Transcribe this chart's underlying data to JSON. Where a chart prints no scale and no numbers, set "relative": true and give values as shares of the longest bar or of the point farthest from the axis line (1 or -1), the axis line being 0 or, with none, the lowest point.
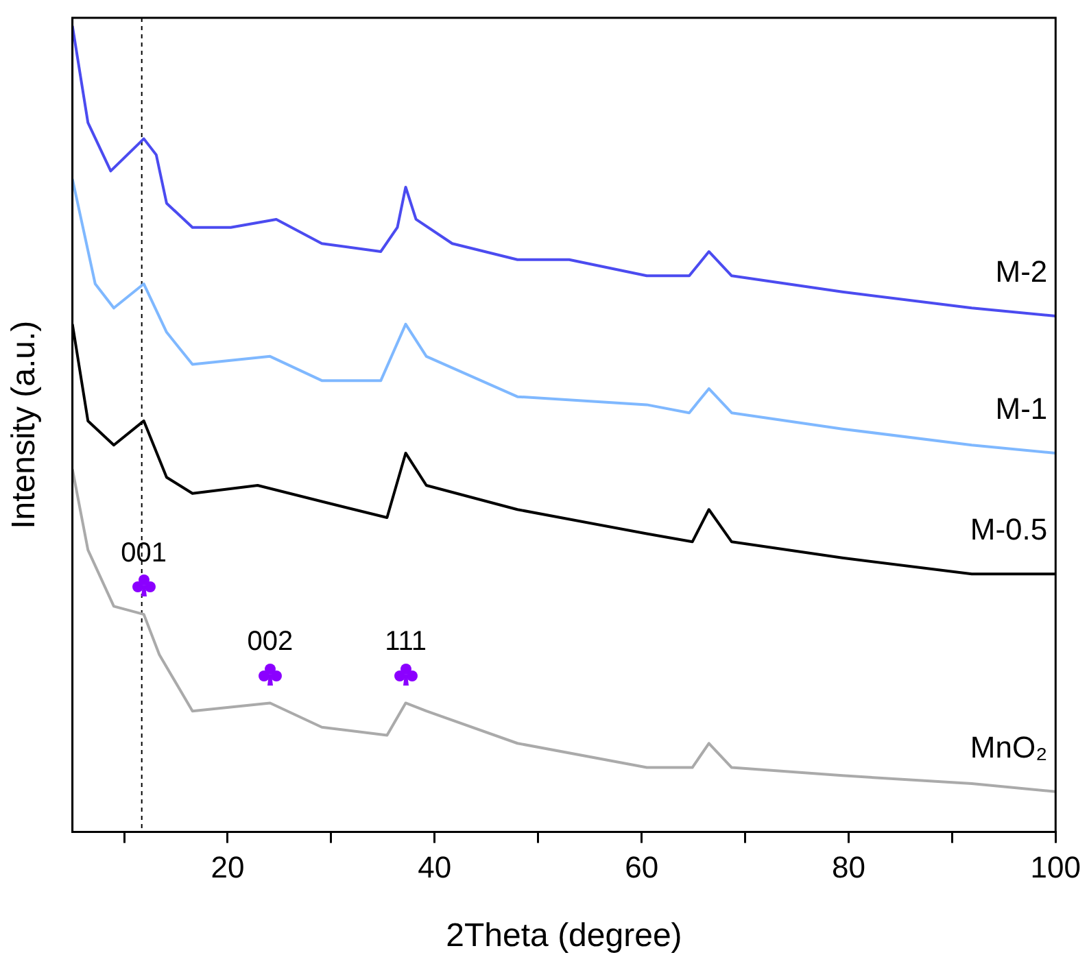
{
  "chart_data": {
    "type": "line",
    "relative": true,
    "xlabel": "2Theta (degree)",
    "ylabel": "Intensity (a.u.)",
    "xlim": [
      5,
      100
    ],
    "xticks": [
      {
        "value": 10,
        "label": null
      },
      20,
      {
        "value": 30,
        "label": null
      },
      40,
      {
        "value": 50,
        "label": null
      },
      60,
      {
        "value": 70,
        "label": null
      },
      80,
      {
        "value": 90,
        "label": null
      },
      100
    ],
    "tick_labels": "x",
    "marker": "none",
    "line_style": "solid",
    "series": [
      {
        "name": "M-2",
        "color": "#4b4bf0",
        "x": [
          5,
          6.5,
          8.7,
          10.3,
          11.9,
          13.1,
          14.1,
          16.6,
          20.3,
          24.7,
          29.1,
          34.8,
          36.4,
          37.2,
          38.2,
          41.7,
          48,
          53,
          60.5,
          64.6,
          66.5,
          68.7,
          79.4,
          91.9,
          100
        ],
        "values": [
          1.0,
          0.88,
          0.82,
          0.84,
          0.86,
          0.84,
          0.78,
          0.75,
          0.75,
          0.76,
          0.73,
          0.72,
          0.75,
          0.8,
          0.76,
          0.73,
          0.71,
          0.71,
          0.69,
          0.69,
          0.72,
          0.69,
          0.67,
          0.65,
          0.64
        ]
      },
      {
        "name": "M-1",
        "color": "#7fb8ff",
        "x": [
          5,
          7.2,
          9,
          11.9,
          14.1,
          16.6,
          24.1,
          29.1,
          34.8,
          37.2,
          39.2,
          48,
          60.5,
          64.6,
          66.5,
          68.7,
          79.4,
          91.9,
          100
        ],
        "values": [
          0.81,
          0.68,
          0.65,
          0.68,
          0.62,
          0.58,
          0.59,
          0.56,
          0.56,
          0.63,
          0.59,
          0.54,
          0.53,
          0.52,
          0.55,
          0.52,
          0.5,
          0.48,
          0.47
        ]
      },
      {
        "name": "M-0.5",
        "color": "#000000",
        "x": [
          5,
          6.5,
          9,
          11.9,
          14.1,
          16.6,
          22.9,
          29.1,
          35.4,
          37.2,
          39.2,
          48,
          60.5,
          64.9,
          66.5,
          68.7,
          79.4,
          91.9,
          100
        ],
        "values": [
          0.63,
          0.51,
          0.48,
          0.51,
          0.44,
          0.42,
          0.43,
          0.41,
          0.39,
          0.47,
          0.43,
          0.4,
          0.37,
          0.36,
          0.4,
          0.36,
          0.34,
          0.32,
          0.32
        ]
      },
      {
        "name": "MnO₂",
        "color": "#aaaaaa",
        "x": [
          5,
          6.5,
          9,
          11.9,
          13.4,
          16.6,
          24.1,
          29.1,
          35.4,
          37.2,
          39.2,
          48,
          60.5,
          64.9,
          66.5,
          68.7,
          79.4,
          91.9,
          100
        ],
        "values": [
          0.45,
          0.35,
          0.28,
          0.27,
          0.22,
          0.15,
          0.16,
          0.13,
          0.12,
          0.16,
          0.15,
          0.11,
          0.08,
          0.08,
          0.11,
          0.08,
          0.07,
          0.06,
          0.05
        ]
      }
    ],
    "ref_lines": [
      {
        "axis": "x",
        "value": 11.7,
        "color": "#000000",
        "line_style": "dashed"
      }
    ],
    "annotations": [
      {
        "text": "001",
        "x": 11.9,
        "y": 0.27
      },
      {
        "text": "002",
        "x": 24.1,
        "y": 0.16
      },
      {
        "text": "111",
        "x": 37.2,
        "y": 0.16
      }
    ]
  }
}
